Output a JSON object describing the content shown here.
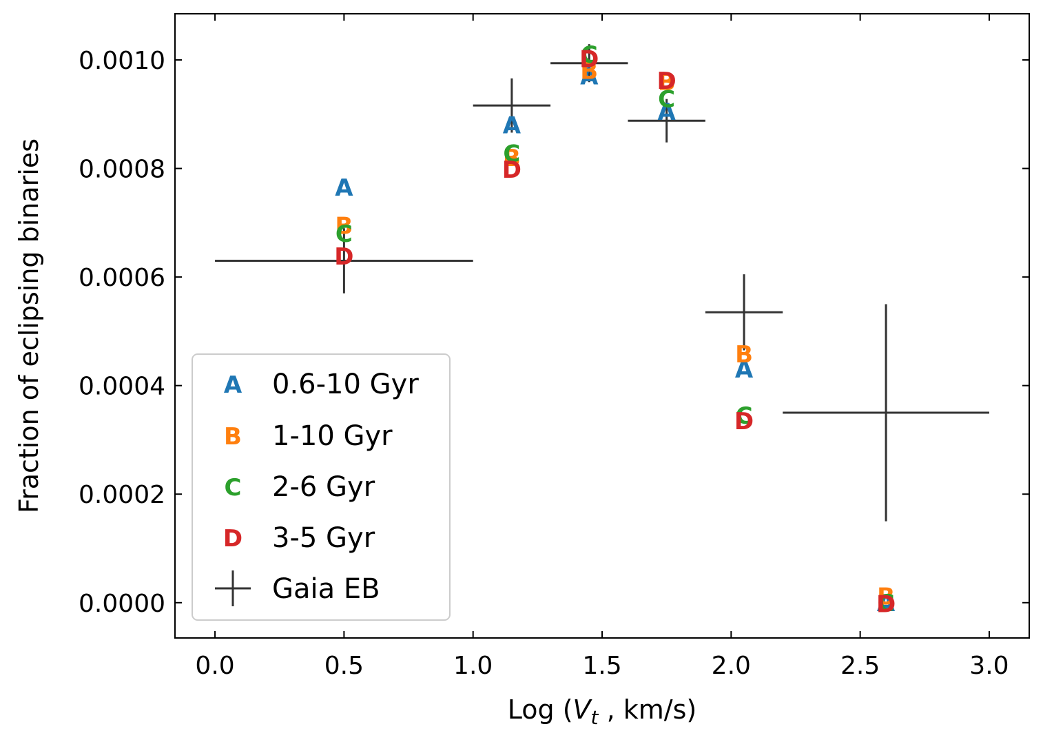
{
  "chart_data": {
    "type": "scatter",
    "title": "",
    "xlabel_prefix": "Log (",
    "xlabel_var": "V",
    "xlabel_sub": "t",
    "xlabel_suffix": " , km/s)",
    "ylabel": "Fraction of eclipsing binaries",
    "xlim": [
      -0.155,
      3.155
    ],
    "ylim": [
      -6.5e-05,
      0.001085
    ],
    "xticks": [
      0.0,
      0.5,
      1.0,
      1.5,
      2.0,
      2.5,
      3.0
    ],
    "xtick_labels": [
      "0.0",
      "0.5",
      "1.0",
      "1.5",
      "2.0",
      "2.5",
      "3.0"
    ],
    "yticks": [
      0.0,
      0.0002,
      0.0004,
      0.0006,
      0.0008,
      0.001
    ],
    "ytick_labels": [
      "0.0000",
      "0.0002",
      "0.0004",
      "0.0006",
      "0.0008",
      "0.0010"
    ],
    "series": [
      {
        "name": "0.6-10 Gyr",
        "marker": "A",
        "color": "#1f77b4",
        "x": [
          0.5,
          1.15,
          1.45,
          1.75,
          2.05,
          2.6
        ],
        "y": [
          0.000765,
          0.00088,
          0.00097,
          0.000905,
          0.00043,
          0.0
        ]
      },
      {
        "name": "1-10 Gyr",
        "marker": "B",
        "color": "#ff7f0e",
        "x": [
          0.5,
          1.15,
          1.45,
          1.75,
          2.05,
          2.6
        ],
        "y": [
          0.000695,
          0.00082,
          0.00098,
          0.00096,
          0.000458,
          1.2e-05
        ]
      },
      {
        "name": "2-6 Gyr",
        "marker": "C",
        "color": "#2ca02c",
        "x": [
          0.5,
          1.15,
          1.45,
          1.75,
          2.05,
          2.6
        ],
        "y": [
          0.00068,
          0.000828,
          0.00101,
          0.000928,
          0.000345,
          0.0
        ]
      },
      {
        "name": "3-5 Gyr",
        "marker": "D",
        "color": "#d62728",
        "x": [
          0.5,
          1.15,
          1.45,
          1.75,
          2.05,
          2.6
        ],
        "y": [
          0.000638,
          0.000798,
          0.001002,
          0.000962,
          0.000335,
          -2e-06
        ]
      }
    ],
    "errorbar_series": {
      "name": "Gaia EB",
      "color": "#333333",
      "points": [
        {
          "x": 0.5,
          "y": 0.00063,
          "xerr": 0.5,
          "yerr": 6e-05
        },
        {
          "x": 1.15,
          "y": 0.000916,
          "xerr": 0.15,
          "yerr": 5e-05
        },
        {
          "x": 1.45,
          "y": 0.000994,
          "xerr": 0.15,
          "yerr": 3.5e-05
        },
        {
          "x": 1.75,
          "y": 0.000888,
          "xerr": 0.15,
          "yerr": 4e-05
        },
        {
          "x": 2.05,
          "y": 0.000535,
          "xerr": 0.15,
          "yerr": 7e-05
        },
        {
          "x": 2.6,
          "y": 0.00035,
          "xerr": 0.4,
          "yerr": 0.0002
        }
      ]
    },
    "legend_position": "lower-left"
  }
}
